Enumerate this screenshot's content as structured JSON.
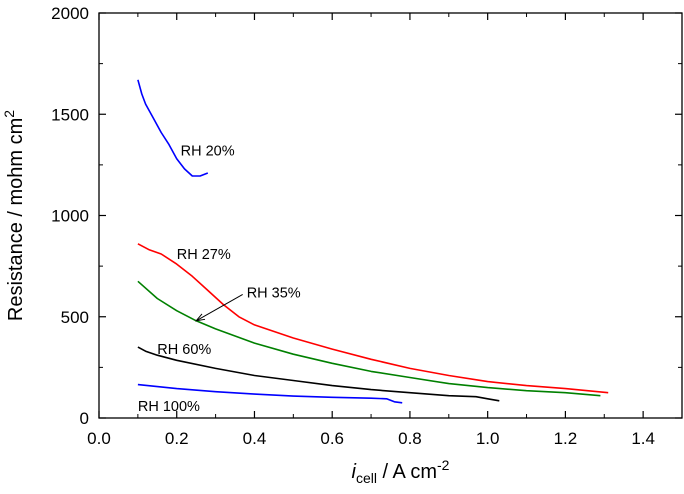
{
  "chart_data": {
    "type": "line",
    "xlabel": {
      "main": "i",
      "sub": "cell",
      "rest": " / A cm",
      "sup": "-2"
    },
    "ylabel": {
      "main": "Resistance / mohm cm",
      "sup": "2"
    },
    "xlim": [
      0.0,
      1.5
    ],
    "ylim": [
      0,
      2000
    ],
    "grid": false,
    "xticks": [
      0.0,
      0.2,
      0.4,
      0.6,
      0.8,
      1.0,
      1.2,
      1.4
    ],
    "xtick_labels": [
      "0.0",
      "0.2",
      "0.4",
      "0.6",
      "0.8",
      "1.0",
      "1.2",
      "1.4"
    ],
    "yticks": [
      0,
      500,
      1000,
      1500,
      2000
    ],
    "ytick_labels": [
      "0",
      "500",
      "1000",
      "1500",
      "2000"
    ],
    "series": [
      {
        "name": "RH 20%",
        "color": "#0000ff",
        "x": [
          0.1,
          0.11,
          0.12,
          0.14,
          0.16,
          0.18,
          0.2,
          0.22,
          0.24,
          0.26,
          0.28
        ],
        "y": [
          1670,
          1600,
          1550,
          1480,
          1410,
          1350,
          1280,
          1230,
          1195,
          1195,
          1210
        ]
      },
      {
        "name": "RH 27%",
        "color": "#ff0000",
        "x": [
          0.1,
          0.13,
          0.16,
          0.2,
          0.24,
          0.28,
          0.32,
          0.36,
          0.4,
          0.5,
          0.6,
          0.7,
          0.8,
          0.9,
          1.0,
          1.1,
          1.2,
          1.31
        ],
        "y": [
          860,
          830,
          810,
          760,
          700,
          630,
          560,
          500,
          460,
          395,
          340,
          290,
          245,
          210,
          180,
          160,
          145,
          125
        ]
      },
      {
        "name": "RH 35%",
        "color": "#008000",
        "x": [
          0.1,
          0.15,
          0.2,
          0.25,
          0.3,
          0.4,
          0.5,
          0.6,
          0.7,
          0.8,
          0.9,
          1.0,
          1.1,
          1.2,
          1.29
        ],
        "y": [
          675,
          590,
          530,
          480,
          440,
          370,
          315,
          270,
          230,
          200,
          170,
          150,
          135,
          125,
          110
        ]
      },
      {
        "name": "RH 60%",
        "color": "#000000",
        "x": [
          0.1,
          0.12,
          0.15,
          0.2,
          0.3,
          0.4,
          0.5,
          0.6,
          0.7,
          0.8,
          0.9,
          0.97,
          1.0,
          1.03
        ],
        "y": [
          350,
          330,
          310,
          285,
          245,
          210,
          185,
          160,
          140,
          125,
          110,
          105,
          95,
          85
        ]
      },
      {
        "name": "RH 100%",
        "color": "#0000ff",
        "x": [
          0.1,
          0.15,
          0.2,
          0.3,
          0.4,
          0.5,
          0.6,
          0.7,
          0.74,
          0.76,
          0.78
        ],
        "y": [
          165,
          155,
          145,
          130,
          118,
          108,
          102,
          98,
          95,
          80,
          75
        ]
      }
    ],
    "annotations": [
      {
        "text": "RH 20%",
        "x": 0.21,
        "y": 1320
      },
      {
        "text": "RH 27%",
        "x": 0.2,
        "y": 810
      },
      {
        "text": "RH 35%",
        "x": 0.38,
        "y": 620,
        "arrow_to_x": 0.25,
        "arrow_to_y": 480
      },
      {
        "text": "RH 60%",
        "x": 0.15,
        "y": 340
      },
      {
        "text": "RH 100%",
        "x": 0.1,
        "y": 60
      }
    ]
  }
}
